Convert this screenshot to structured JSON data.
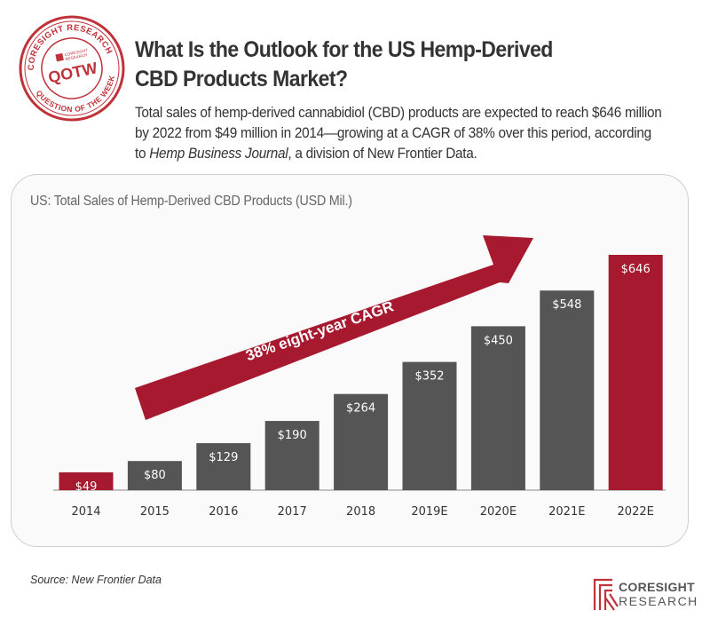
{
  "stamp": {
    "outer_text_top": "CORESIGHT RESEARCH",
    "outer_text_bottom": "QUESTION OF THE WEEK",
    "center_text": "QOTW",
    "brand_mini": "CORESIGHT\nRESEARCH",
    "color": "#c0323a"
  },
  "header": {
    "title_line1": "What Is the Outlook for the US Hemp-Derived",
    "title_line2": "CBD Products Market?",
    "subtitle_part1": "Total sales of hemp-derived cannabidiol (CBD) products are expected to reach $646 million by 2022 from $49 million in 2014—growing at a CAGR of 38% over this period, according to ",
    "subtitle_italic": "Hemp Business Journal",
    "subtitle_part2": ", a division of New Frontier Data."
  },
  "chart_data": {
    "type": "bar",
    "title": "US: Total Sales of Hemp-Derived CBD Products (USD Mil.)",
    "categories": [
      "2014",
      "2015",
      "2016",
      "2017",
      "2018",
      "2019E",
      "2020E",
      "2021E",
      "2022E"
    ],
    "values": [
      49,
      80,
      129,
      190,
      264,
      352,
      450,
      548,
      646
    ],
    "data_labels": [
      "$49",
      "$80",
      "$129",
      "$190",
      "$264",
      "$352",
      "$450",
      "$548",
      "$646"
    ],
    "highlighted": [
      "2014",
      "2022E"
    ],
    "colors": {
      "default_bar": "#555555",
      "highlight_bar": "#a6192e",
      "arrow": "#a6192e"
    },
    "annotation": "38% eight-year CAGR",
    "ylim": [
      0,
      650
    ],
    "xlabel": "",
    "ylabel": "",
    "grid": false
  },
  "footer": {
    "source": "Source: New Frontier Data",
    "logo_line1": "CORESIGHT",
    "logo_line2": "RESEARCH"
  }
}
